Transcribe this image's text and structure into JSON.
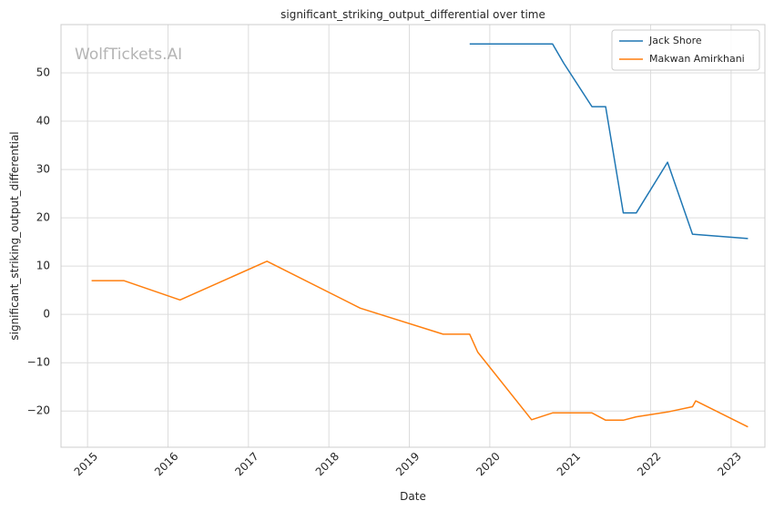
{
  "chart_data": {
    "type": "line",
    "title": "significant_striking_output_differential over time",
    "xlabel": "Date",
    "ylabel": "significant_striking_output_differential",
    "watermark": "WolfTickets.AI",
    "xlim": [
      2014.67,
      2023.42
    ],
    "ylim": [
      -27.5,
      60
    ],
    "x_ticks": [
      2015,
      2016,
      2017,
      2018,
      2019,
      2020,
      2021,
      2022,
      2023
    ],
    "x_tick_labels": [
      "2015",
      "2016",
      "2017",
      "2018",
      "2019",
      "2020",
      "2021",
      "2022",
      "2023"
    ],
    "y_ticks": [
      -20,
      -10,
      0,
      10,
      20,
      30,
      40,
      50
    ],
    "y_tick_labels": [
      "−20",
      "−10",
      "0",
      "10",
      "20",
      "30",
      "40",
      "50"
    ],
    "grid": true,
    "legend_position": "top-right",
    "series": [
      {
        "name": "Jack Shore",
        "color": "#1f77b4",
        "points": [
          [
            2019.75,
            56
          ],
          [
            2020.78,
            56
          ],
          [
            2020.92,
            52
          ],
          [
            2021.27,
            43
          ],
          [
            2021.44,
            43
          ],
          [
            2021.66,
            21
          ],
          [
            2021.82,
            21
          ],
          [
            2022.21,
            31.5
          ],
          [
            2022.52,
            16.6
          ],
          [
            2023.21,
            15.7
          ]
        ]
      },
      {
        "name": "Makwan Amirkhani",
        "color": "#ff7f0e",
        "points": [
          [
            2015.05,
            7
          ],
          [
            2015.45,
            7
          ],
          [
            2016.15,
            3
          ],
          [
            2017.23,
            11
          ],
          [
            2018.39,
            1.3
          ],
          [
            2019.42,
            -4.1
          ],
          [
            2019.75,
            -4.1
          ],
          [
            2019.85,
            -7.8
          ],
          [
            2020.52,
            -21.8
          ],
          [
            2020.78,
            -20.4
          ],
          [
            2021.27,
            -20.4
          ],
          [
            2021.44,
            -21.9
          ],
          [
            2021.66,
            -21.9
          ],
          [
            2021.82,
            -21.2
          ],
          [
            2022.21,
            -20.2
          ],
          [
            2022.52,
            -19.1
          ],
          [
            2022.56,
            -17.9
          ],
          [
            2023.21,
            -23.3
          ]
        ]
      }
    ]
  }
}
